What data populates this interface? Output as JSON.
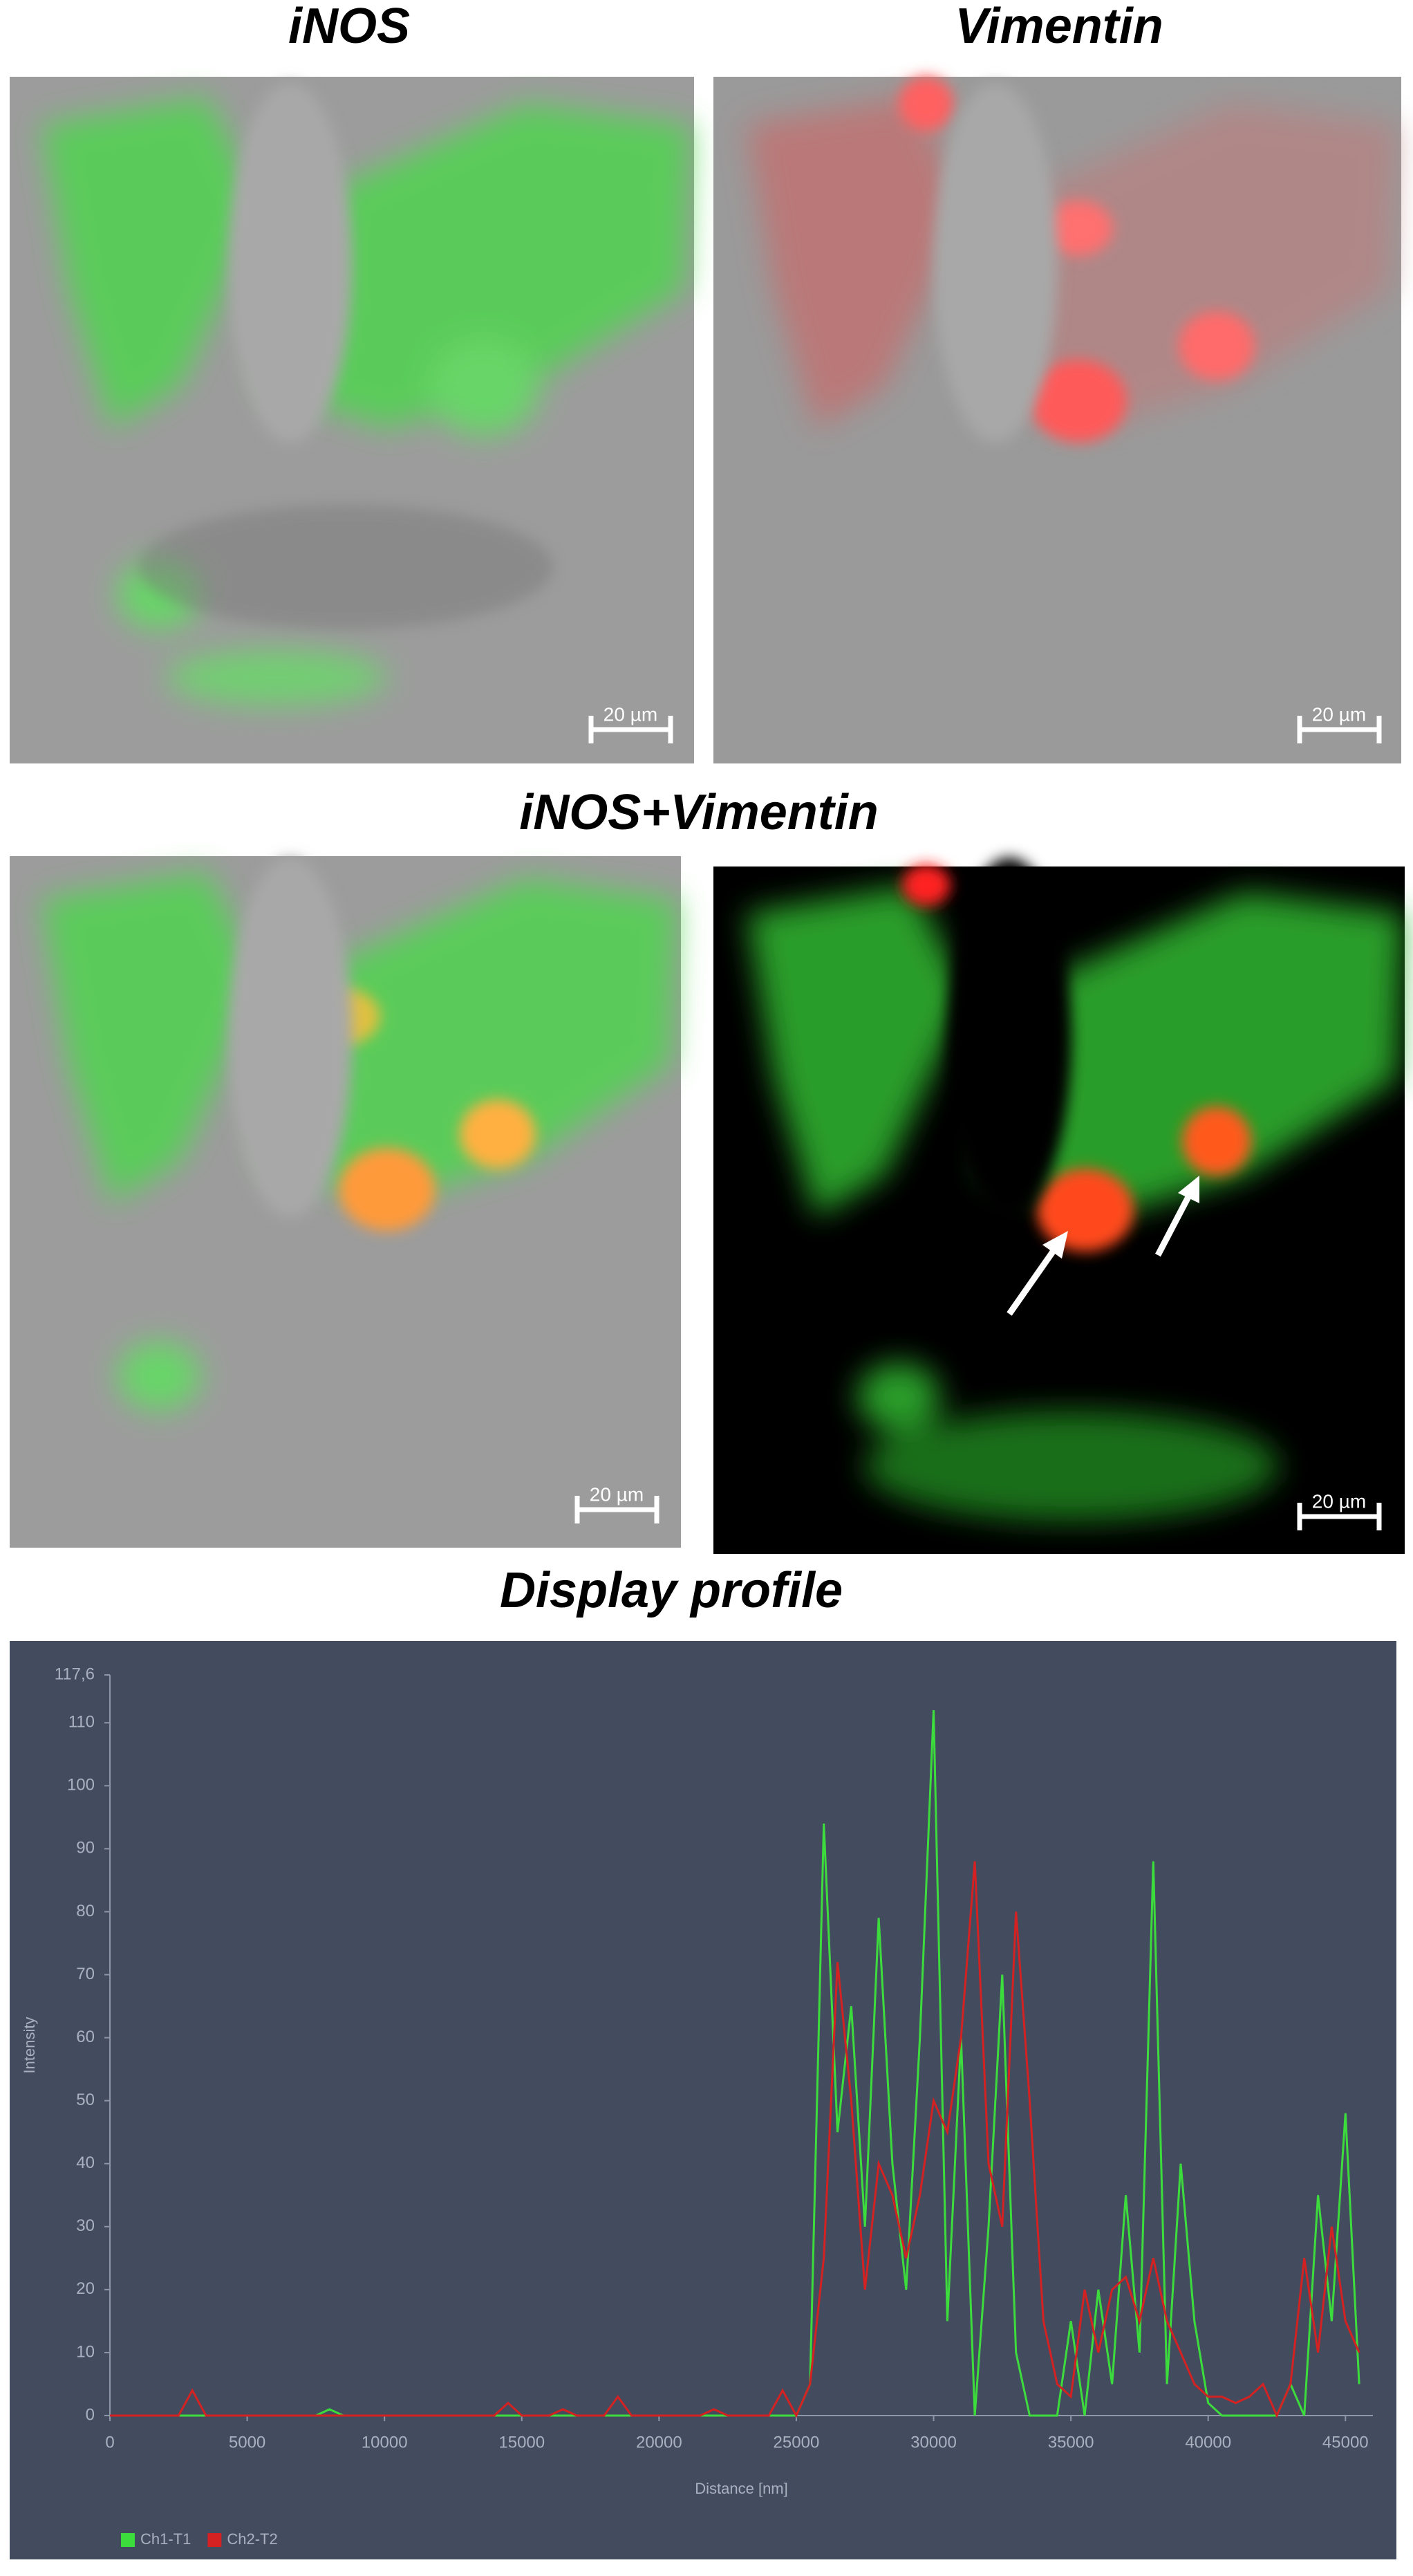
{
  "panel_titles": [
    "iNOS",
    "Vimentin",
    "iNOS+Vimentin",
    "Display profile"
  ],
  "scale_bars": [
    "20 µm",
    "20 µm",
    "20 µm",
    "20 µm"
  ],
  "chart_data": {
    "type": "line",
    "xlabel": "Distance [nm]",
    "ylabel": "Intensity",
    "x": [
      0,
      500,
      1000,
      1500,
      2000,
      2500,
      3000,
      3500,
      4000,
      4500,
      5000,
      5500,
      6000,
      6500,
      7000,
      7500,
      8000,
      8500,
      9000,
      9500,
      10000,
      10500,
      11000,
      11500,
      12000,
      12500,
      13000,
      13500,
      14000,
      14500,
      15000,
      15500,
      16000,
      16500,
      17000,
      17500,
      18000,
      18500,
      19000,
      19500,
      20000,
      20500,
      21000,
      21500,
      22000,
      22500,
      23000,
      23500,
      24000,
      24500,
      25000,
      25500,
      26000,
      26500,
      27000,
      27500,
      28000,
      28500,
      29000,
      29500,
      30000,
      30500,
      31000,
      31500,
      32000,
      32500,
      33000,
      33500,
      34000,
      34500,
      35000,
      35500,
      36000,
      36500,
      37000,
      37500,
      38000,
      38500,
      39000,
      39500,
      40000,
      40500,
      41000,
      41500,
      42000,
      42500,
      43000,
      43500,
      44000,
      44500,
      45000,
      45500
    ],
    "series": [
      {
        "name": "Ch1-T1",
        "color": "#3ddc3d",
        "values": [
          0,
          0,
          0,
          0,
          0,
          0,
          0,
          0,
          0,
          0,
          0,
          0,
          0,
          0,
          0,
          0,
          1,
          0,
          0,
          0,
          0,
          0,
          0,
          0,
          0,
          0,
          0,
          0,
          0,
          0,
          0,
          0,
          0,
          0,
          0,
          0,
          0,
          0,
          0,
          0,
          0,
          0,
          0,
          0,
          0,
          0,
          0,
          0,
          0,
          0,
          0,
          5,
          94,
          45,
          65,
          30,
          79,
          40,
          20,
          60,
          112,
          15,
          60,
          0,
          30,
          70,
          10,
          0,
          0,
          0,
          15,
          0,
          20,
          5,
          35,
          10,
          88,
          5,
          40,
          15,
          2,
          0,
          0,
          0,
          0,
          0,
          5,
          0,
          35,
          15,
          48,
          5
        ]
      },
      {
        "name": "Ch2-T2",
        "color": "#d42222",
        "values": [
          0,
          0,
          0,
          0,
          0,
          0,
          4,
          0,
          0,
          0,
          0,
          0,
          0,
          0,
          0,
          0,
          0,
          0,
          0,
          0,
          0,
          0,
          0,
          0,
          0,
          0,
          0,
          0,
          0,
          2,
          0,
          0,
          0,
          1,
          0,
          0,
          0,
          3,
          0,
          0,
          0,
          0,
          0,
          0,
          1,
          0,
          0,
          0,
          0,
          4,
          0,
          5,
          25,
          72,
          50,
          20,
          40,
          35,
          25,
          35,
          50,
          45,
          60,
          88,
          40,
          30,
          80,
          50,
          15,
          5,
          3,
          20,
          10,
          20,
          22,
          15,
          25,
          15,
          10,
          5,
          3,
          3,
          2,
          3,
          5,
          0,
          5,
          25,
          10,
          30,
          15,
          10
        ]
      }
    ],
    "xlim": [
      0,
      46000
    ],
    "xticks": [
      0,
      5000,
      10000,
      15000,
      20000,
      25000,
      30000,
      35000,
      40000,
      45000
    ],
    "ylim": [
      0,
      117.6
    ],
    "yticks": [
      0,
      10,
      20,
      30,
      40,
      50,
      60,
      70,
      80,
      90,
      100,
      110,
      {
        "value": 117.6,
        "label": "117,6"
      }
    ],
    "grid": false,
    "legend": "bottom-left"
  }
}
